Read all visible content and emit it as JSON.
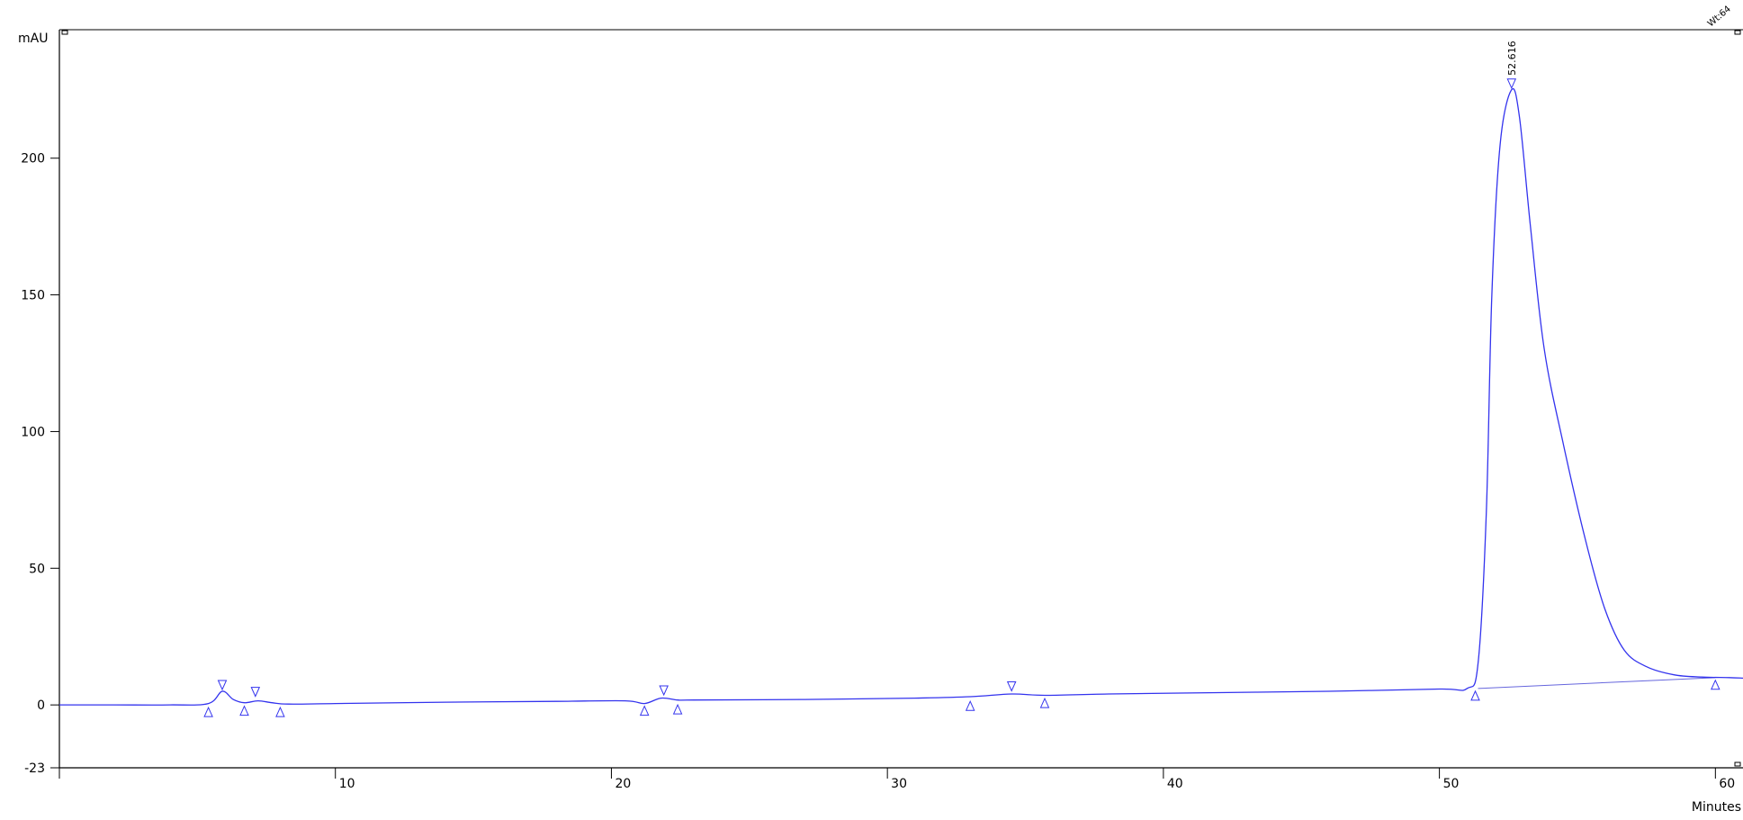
{
  "chart_data": {
    "type": "line",
    "ylabel": "mAU",
    "xlabel": "Minutes",
    "xlim": [
      0,
      61
    ],
    "ylim": [
      -23,
      247
    ],
    "x_ticks": [
      10,
      20,
      30,
      40,
      50,
      60
    ],
    "x_tick_labels": [
      "10",
      "20",
      "30",
      "40",
      "50",
      "60"
    ],
    "y_ticks": [
      -23,
      0,
      50,
      100,
      150,
      200
    ],
    "y_tick_labels": [
      "-23",
      "0",
      "50",
      "100",
      "150",
      "200"
    ],
    "corner_label": "Wt:64",
    "grid": false,
    "legend": "none",
    "colors": {
      "trace": "#3333ee",
      "axis": "#000000",
      "baseline": "#6666dd"
    },
    "series": [
      {
        "x": [
          0,
          2,
          4,
          5.4,
          5.9,
          6.3,
          6.7,
          7.2,
          7.7,
          8.3,
          10,
          14,
          18,
          20.5,
          21.2,
          21.8,
          22.4,
          23,
          27,
          31,
          33,
          34.5,
          35.7,
          38,
          42,
          46,
          50,
          51,
          51.4,
          51.7,
          51.9,
          52.2,
          52.616,
          52.9,
          53.3,
          53.8,
          54.5,
          55.3,
          56,
          56.7,
          57.5,
          58.5,
          59.5,
          60.5,
          61
        ],
        "y": [
          0,
          0,
          0,
          0.5,
          5,
          2,
          0.8,
          1.5,
          0.8,
          0.3,
          0.5,
          1,
          1.3,
          1.5,
          0.5,
          2.5,
          1.8,
          1.8,
          2,
          2.5,
          3,
          4,
          3.5,
          4,
          4.5,
          5,
          5.8,
          6,
          15,
          70,
          150,
          205,
          225,
          215,
          175,
          130,
          95,
          60,
          35,
          20,
          14,
          11,
          10.2,
          10,
          9.8
        ]
      }
    ],
    "baselines": [
      {
        "x": [
          51.4,
          60
        ],
        "y": [
          6,
          10
        ]
      }
    ],
    "peak_labels": [
      {
        "x": 52.616,
        "y": 225,
        "label": "52.616"
      }
    ],
    "peak_start_markers": [
      {
        "x": 5.4,
        "y": 0
      },
      {
        "x": 6.7,
        "y": 0.5
      },
      {
        "x": 8,
        "y": 0
      },
      {
        "x": 21.2,
        "y": 0.5
      },
      {
        "x": 22.4,
        "y": 1
      },
      {
        "x": 33,
        "y": 2.3
      },
      {
        "x": 35.7,
        "y": 3.3
      },
      {
        "x": 51.3,
        "y": 6
      },
      {
        "x": 60,
        "y": 10
      }
    ],
    "peak_apex_markers": [
      {
        "x": 5.9,
        "y": 5
      },
      {
        "x": 7.1,
        "y": 2.5
      },
      {
        "x": 21.9,
        "y": 3
      },
      {
        "x": 34.5,
        "y": 4.5
      },
      {
        "x": 52.616,
        "y": 225
      }
    ]
  }
}
